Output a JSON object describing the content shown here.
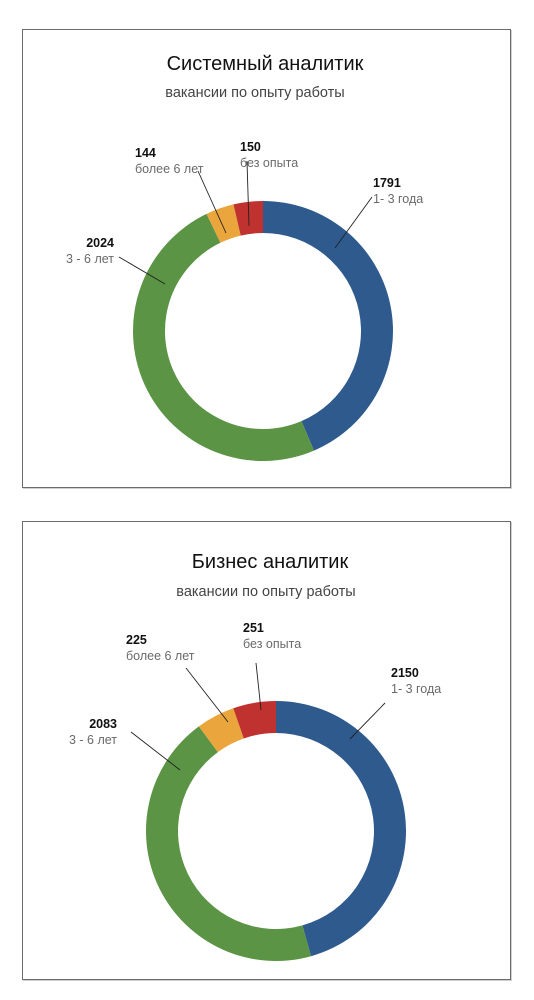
{
  "chart_data": [
    {
      "type": "pie",
      "title": "Системный аналитик",
      "subtitle": "вакансии по опыту работы",
      "categories": [
        "1- 3 года",
        "3 - 6 лет",
        "более 6 лет",
        "без опыта"
      ],
      "values": [
        1791,
        2024,
        144,
        150
      ],
      "colors": [
        "#2e5a8e",
        "#5a9444",
        "#eaa63c",
        "#c0322f"
      ],
      "donut": true
    },
    {
      "type": "pie",
      "title": "Бизнес аналитик",
      "subtitle": "вакансии по опыту работы",
      "categories": [
        "1- 3 года",
        "3 - 6 лет",
        "более 6 лет",
        "без опыта"
      ],
      "values": [
        2150,
        2083,
        225,
        251
      ],
      "colors": [
        "#2e5a8e",
        "#5a9444",
        "#eaa63c",
        "#c0322f"
      ],
      "donut": true
    }
  ]
}
